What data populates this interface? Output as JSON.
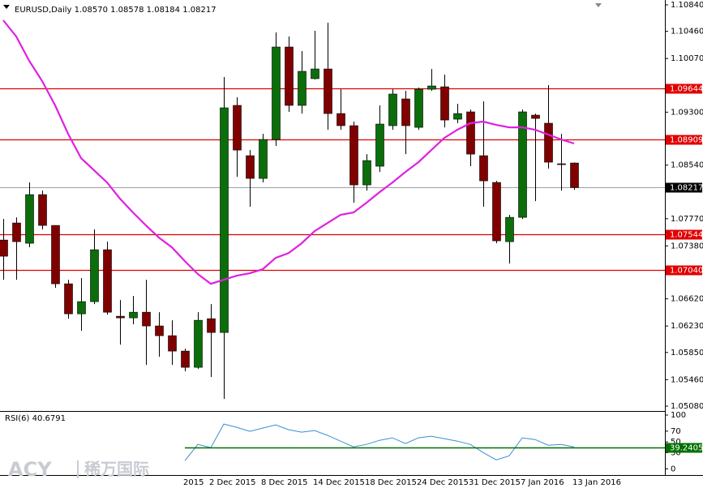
{
  "chart_data": {
    "type": "candlestick",
    "title": "EURUSD,Daily  1.08570 1.08578 1.08184 1.08217",
    "watermark": [
      "ACY",
      "稀万国际"
    ],
    "categories": [
      null,
      null,
      null,
      null,
      null,
      null,
      null,
      null,
      null,
      null,
      null,
      null,
      null,
      null,
      "2015",
      null,
      "2 Dec 2015",
      null,
      null,
      null,
      "8 Dec 2015",
      null,
      null,
      null,
      "14 Dec 2015",
      null,
      null,
      null,
      "18 Dec 2015",
      null,
      null,
      null,
      "24 Dec 2015",
      null,
      null,
      null,
      "31 Dec 2015",
      null,
      null,
      null,
      "7 Jan 2016",
      null,
      null,
      null,
      "13 Jan 2016"
    ],
    "open": [
      1.07464,
      1.07709,
      1.07418,
      1.08116,
      1.07674,
      1.06836,
      1.06405,
      1.0658,
      1.07325,
      1.0637,
      1.06347,
      1.06428,
      1.06231,
      1.06091,
      1.0587,
      1.05637,
      1.06335,
      1.06137,
      1.09397,
      1.08675,
      1.08349,
      1.08908,
      1.10235,
      1.09397,
      1.09781,
      1.0992,
      1.0928,
      1.09106,
      1.08256,
      1.08524,
      1.09106,
      1.0949,
      1.09082,
      1.09629,
      1.09664,
      1.09199,
      1.09304,
      1.08675,
      1.08291,
      1.07441,
      1.0779,
      1.09257,
      1.09141,
      1.08559,
      1.0857
    ],
    "high": [
      1.07767,
      1.0779,
      1.08291,
      1.08174,
      1.07674,
      1.06894,
      1.06917,
      1.07616,
      1.07441,
      1.06603,
      1.06661,
      1.06894,
      1.06428,
      1.06312,
      1.05905,
      1.06428,
      1.06545,
      1.09804,
      1.09513,
      1.08756,
      1.08989,
      1.10444,
      1.10386,
      1.10177,
      1.10468,
      1.10584,
      1.09629,
      1.09164,
      1.08698,
      1.09397,
      1.09629,
      1.09606,
      1.09653,
      1.0992,
      1.09839,
      1.0942,
      1.09338,
      1.09455,
      1.08314,
      1.07825,
      1.09338,
      1.0928,
      1.09688,
      1.08989,
      1.08578
    ],
    "low": [
      1.06894,
      1.06894,
      1.0736,
      1.07616,
      1.06778,
      1.06335,
      1.06161,
      1.06545,
      1.06394,
      1.05963,
      1.06254,
      1.05672,
      1.05788,
      1.05672,
      1.05579,
      1.05614,
      1.05497,
      1.05183,
      1.08372,
      1.07942,
      1.08291,
      1.08815,
      1.09304,
      1.0928,
      1.09769,
      1.09047,
      1.09047,
      1.08,
      1.08174,
      1.08442,
      1.09047,
      1.08698,
      1.09047,
      1.09606,
      1.09082,
      1.09141,
      1.08524,
      1.07942,
      1.07418,
      1.07127,
      1.07767,
      1.08023,
      1.08489,
      1.08174,
      1.08184
    ],
    "close": [
      1.07232,
      1.07441,
      1.08116,
      1.07674,
      1.06836,
      1.06405,
      1.0658,
      1.07325,
      1.06428,
      1.06347,
      1.06428,
      1.06231,
      1.06091,
      1.0587,
      1.05637,
      1.06312,
      1.06137,
      1.09362,
      1.08756,
      1.08349,
      1.08908,
      1.10235,
      1.09397,
      1.09886,
      1.0992,
      1.0928,
      1.09106,
      1.08256,
      1.08605,
      1.09129,
      1.0956,
      1.09106,
      1.09629,
      1.09676,
      1.09187,
      1.0928,
      1.08698,
      1.08314,
      1.07453,
      1.0779,
      1.09304,
      1.0921,
      1.08582,
      1.08547,
      1.08217
    ],
    "up_color": "#0b6e0b",
    "down_color": "#800000",
    "ma": {
      "color": "#e020e0",
      "values": [
        1.10619,
        1.10386,
        1.10037,
        1.09746,
        1.09397,
        1.08989,
        1.0864,
        1.08465,
        1.08291,
        1.08058,
        1.0786,
        1.07674,
        1.07499,
        1.0736,
        1.07162,
        1.06976,
        1.06836,
        1.06894,
        1.06952,
        1.06987,
        1.07045,
        1.07208,
        1.07278,
        1.07418,
        1.07592,
        1.07709,
        1.07825,
        1.0786,
        1.08,
        1.08151,
        1.08291,
        1.08442,
        1.08582,
        1.08756,
        1.08931,
        1.09047,
        1.09141,
        1.09164,
        1.09117,
        1.09082,
        1.09082,
        1.09047,
        1.08978,
        1.08908,
        1.0885
      ]
    },
    "ylim": [
      1.0501,
      1.1091
    ],
    "yticks": [
      {
        "value": 1.1084,
        "label": "1.10840"
      },
      {
        "value": 1.1046,
        "label": "1.10460"
      },
      {
        "value": 1.1007,
        "label": "1.10070"
      },
      {
        "value": 1.093,
        "label": "1.09300"
      },
      {
        "value": 1.0854,
        "label": "1.08540"
      },
      {
        "value": 1.0777,
        "label": "1.07770"
      },
      {
        "value": 1.0738,
        "label": "1.07380"
      },
      {
        "value": 1.0662,
        "label": "1.06620"
      },
      {
        "value": 1.0623,
        "label": "1.06230"
      },
      {
        "value": 1.0585,
        "label": "1.05850"
      },
      {
        "value": 1.0546,
        "label": "1.05460"
      },
      {
        "value": 1.0508,
        "label": "1.05080"
      }
    ],
    "hlines": [
      1.09644,
      1.08909,
      1.07544,
      {
        "value": 1.0704,
        "label": "1.07040"
      }
    ],
    "hline_color": "#e00000",
    "last_price": 1.08217,
    "indicator": {
      "title": "RSI(6) 40.6791",
      "color": "#3c8fd0",
      "values": [
        null,
        null,
        null,
        null,
        null,
        null,
        null,
        null,
        null,
        null,
        null,
        null,
        null,
        null,
        15.2,
        45.5,
        39.4,
        83.3,
        77.3,
        69.7,
        75.8,
        81.8,
        72.7,
        68.2,
        71.2,
        62.1,
        51.5,
        40.9,
        45.5,
        53,
        57.6,
        47,
        57.6,
        60.6,
        56.1,
        51.5,
        45.5,
        30.3,
        16.7,
        24.2,
        57.6,
        54.5,
        43.9,
        45.5,
        40.68
      ],
      "ylim": [
        -10,
        103
      ],
      "yticks": [
        100,
        70,
        50,
        30,
        0
      ],
      "level": 39.2405,
      "level_color": "#007000"
    }
  }
}
